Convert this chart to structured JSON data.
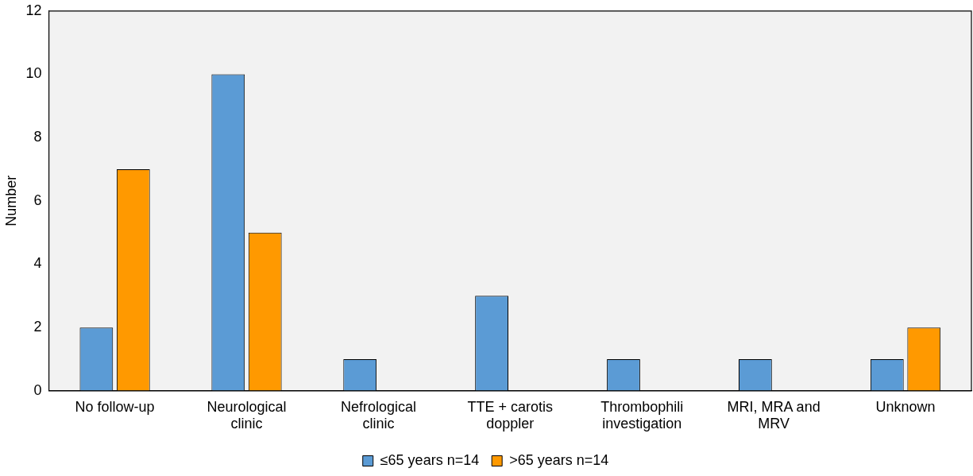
{
  "chart_data": {
    "type": "bar",
    "ylabel": "Number",
    "categories": [
      "No follow-up",
      "Neurological clinic",
      "Nefrological clinic",
      "TTE + carotis doppler",
      "Thrombophili investigation",
      "MRI, MRA and MRV",
      "Unknown"
    ],
    "series": [
      {
        "name": "≤65 years n=14",
        "color": "#5b9bd5",
        "values": [
          2,
          10,
          1,
          3,
          1,
          1,
          1
        ]
      },
      {
        "name": ">65 years n=14",
        "color": "#ff9900",
        "values": [
          7,
          5,
          0,
          0,
          0,
          0,
          2
        ]
      }
    ],
    "ylim": [
      0,
      12
    ],
    "yticks": [
      0,
      2,
      4,
      6,
      8,
      10,
      12
    ],
    "grid": false,
    "legend": "bottom"
  }
}
